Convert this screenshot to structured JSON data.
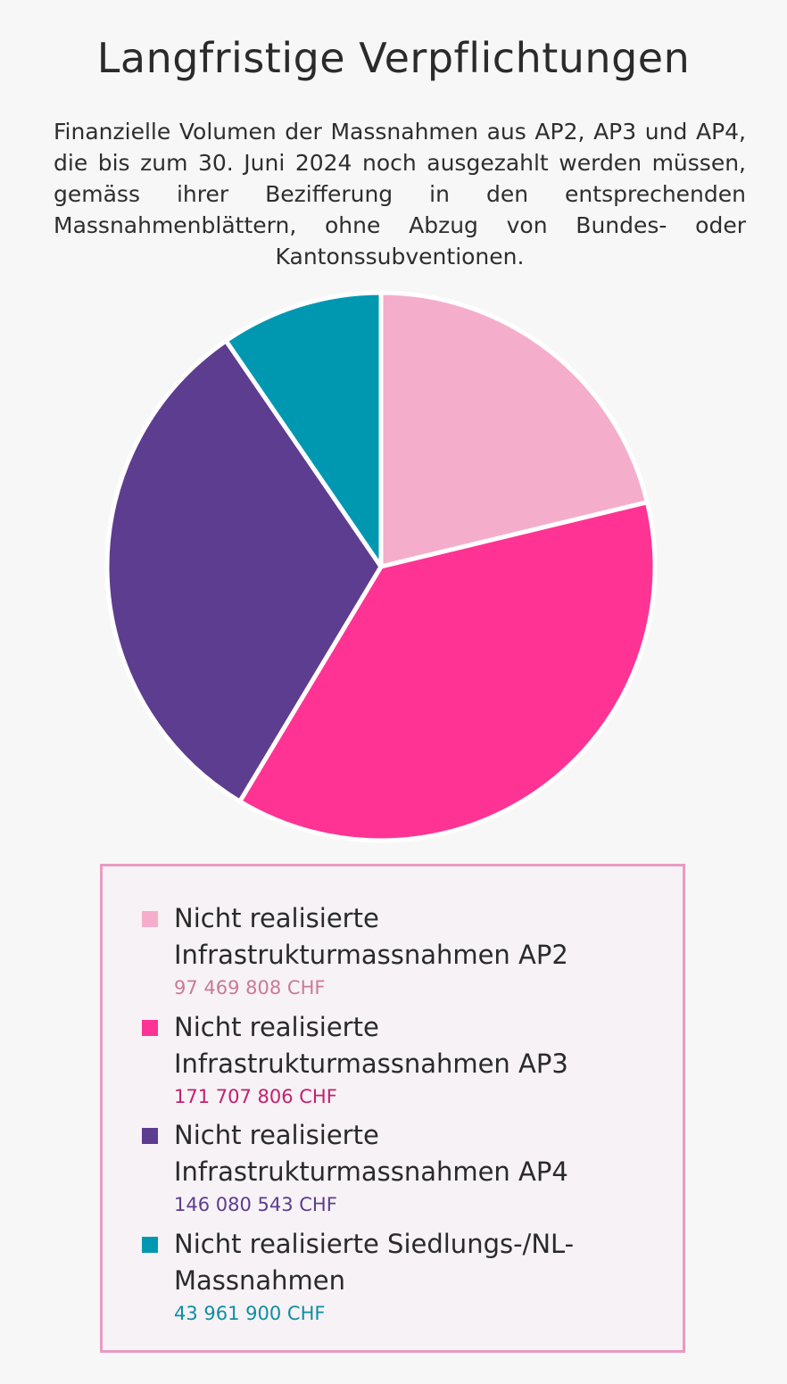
{
  "chart_data": {
    "type": "pie",
    "title": "Langfristige Verpflichtungen",
    "subtitle": "Finanzielle Volumen der Massnahmen aus AP2, AP3 und AP4, die bis zum 30. Juni 2024 noch ausgezahlt werden müssen, gemäss ihrer Bezifferung in den entsprechenden Massnahmenblättern, ohne Abzug von Bundes- oder Kantonssubventionen.",
    "slices": [
      {
        "label": "Nicht realisierte Infrastrukturmassnahmen AP2",
        "value": 97469808,
        "value_label": "97 469 808 CHF",
        "color": "#f4aecb",
        "value_color": "#c97a9b"
      },
      {
        "label": "Nicht realisierte Infrastrukturmassnahmen AP3",
        "value": 171707806,
        "value_label": "171 707 806 CHF",
        "color": "#ff3394",
        "value_color": "#c4206e"
      },
      {
        "label": "Nicht realisierte Infrastrukturmassnahmen AP4",
        "value": 146080543,
        "value_label": "146 080 543 CHF",
        "color": "#5c3d8f",
        "value_color": "#5c3d8f"
      },
      {
        "label": "Nicht realisierte Siedlungs-/NL-Massnahmen",
        "value": 43961900,
        "value_label": "43 961 900 CHF",
        "color": "#0098b1",
        "value_color": "#0e8ea3"
      }
    ],
    "start_angle": "12 o'clock",
    "direction": "clockwise",
    "legend_position": "bottom"
  }
}
